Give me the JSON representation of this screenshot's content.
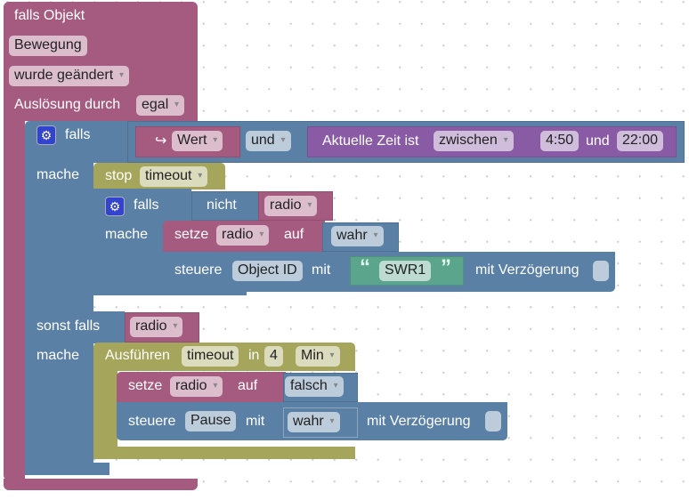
{
  "event": {
    "title": "falls Objekt",
    "object": "Bewegung",
    "condition": "wurde geändert",
    "trigger_label": "Auslösung durch",
    "trigger": "egal"
  },
  "if1": {
    "falls": "falls",
    "mache": "mache",
    "sonst_falls": "sonst falls",
    "mache2": "mache",
    "cond": {
      "wert_arrow": "↪",
      "wert": "Wert",
      "op": "und",
      "time_label": "Aktuelle Zeit ist",
      "time_mode": "zwischen",
      "from": "4:50",
      "and": "und",
      "to": "22:00"
    },
    "elseif_var": "radio"
  },
  "stop": {
    "label": "stop",
    "timer": "timeout"
  },
  "if2": {
    "falls": "falls",
    "not": "nicht",
    "var": "radio",
    "mache": "mache"
  },
  "set1": {
    "label": "setze",
    "var": "radio",
    "to": "auf",
    "value": "wahr"
  },
  "control1": {
    "label": "steuere",
    "id": "Object ID",
    "with": "mit",
    "open_quote": "“",
    "value": "SWR1",
    "close_quote": "”",
    "delay": "mit Verzögerung"
  },
  "timeout": {
    "label": "Ausführen",
    "timer": "timeout",
    "in": "in",
    "amount": "4",
    "unit": "Min"
  },
  "set2": {
    "label": "setze",
    "var": "radio",
    "to": "auf",
    "value": "falsch"
  },
  "control2": {
    "label": "steuere",
    "id": "Pause",
    "with": "mit",
    "value": "wahr",
    "delay": "mit Verzögerung"
  }
}
